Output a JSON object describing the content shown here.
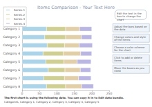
{
  "chart_data": {
    "type": "bar",
    "title": "Items Comparison - Your Text Here",
    "orientation": "horizontal",
    "stacked": true,
    "grid": false,
    "legend": "top-left",
    "categories": [
      "Category 1",
      "Category 2",
      "Category 3",
      "Category 4",
      "Category 5",
      "Category 6",
      "Category 7",
      "Category 8"
    ],
    "series": [
      {
        "name": "Series 1",
        "color": "#a9d4ea",
        "values": [
          70,
          65,
          72,
          60,
          68,
          75,
          62,
          70
        ]
      },
      {
        "name": "Series 2",
        "color": "#cfd08f",
        "values": [
          55,
          60,
          50,
          58,
          52,
          48,
          60,
          55
        ]
      },
      {
        "name": "Series 3",
        "color": "#e3cfa6",
        "values": [
          40,
          45,
          42,
          50,
          38,
          44,
          40,
          46
        ]
      },
      {
        "name": "Series 4",
        "color": "#b9b6e6",
        "values": [
          35,
          30,
          38,
          32,
          40,
          30,
          36,
          34
        ]
      }
    ],
    "xlim": [
      0,
      250
    ],
    "xticks": [
      0,
      50,
      100,
      150,
      200,
      250
    ],
    "annotations": [
      "Edit the text in the box to change the chart",
      "Adjust the bars based on the data",
      "Change colors and style of the items",
      "Choose a color scheme for the chart",
      "Click to add or delete items",
      "Move the boxes as you need"
    ],
    "footer": [
      "The first chart is using the following data. You can copy it in to Edit data bundle.",
      "Categories, Category 1, Category 2, Category 3, Category 4, Category 5"
    ]
  }
}
